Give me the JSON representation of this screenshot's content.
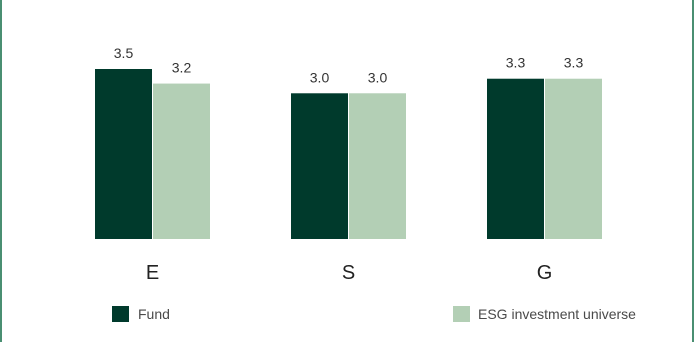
{
  "chart_data": {
    "type": "bar",
    "categories": [
      "E",
      "S",
      "G"
    ],
    "series": [
      {
        "name": "Fund",
        "values": [
          3.5,
          3.0,
          3.3
        ],
        "value_labels": [
          "3.5",
          "3.0",
          "3.3"
        ],
        "color": "#003a2c"
      },
      {
        "name": "ESG investment universe",
        "values": [
          3.2,
          3.0,
          3.3
        ],
        "value_labels": [
          "3.2",
          "3.0",
          "3.3"
        ],
        "color": "#b3cfb5"
      }
    ],
    "title": "",
    "xlabel": "",
    "ylabel": "",
    "ylim": [
      0,
      3.5
    ],
    "grid": false,
    "legend": "bottom"
  }
}
